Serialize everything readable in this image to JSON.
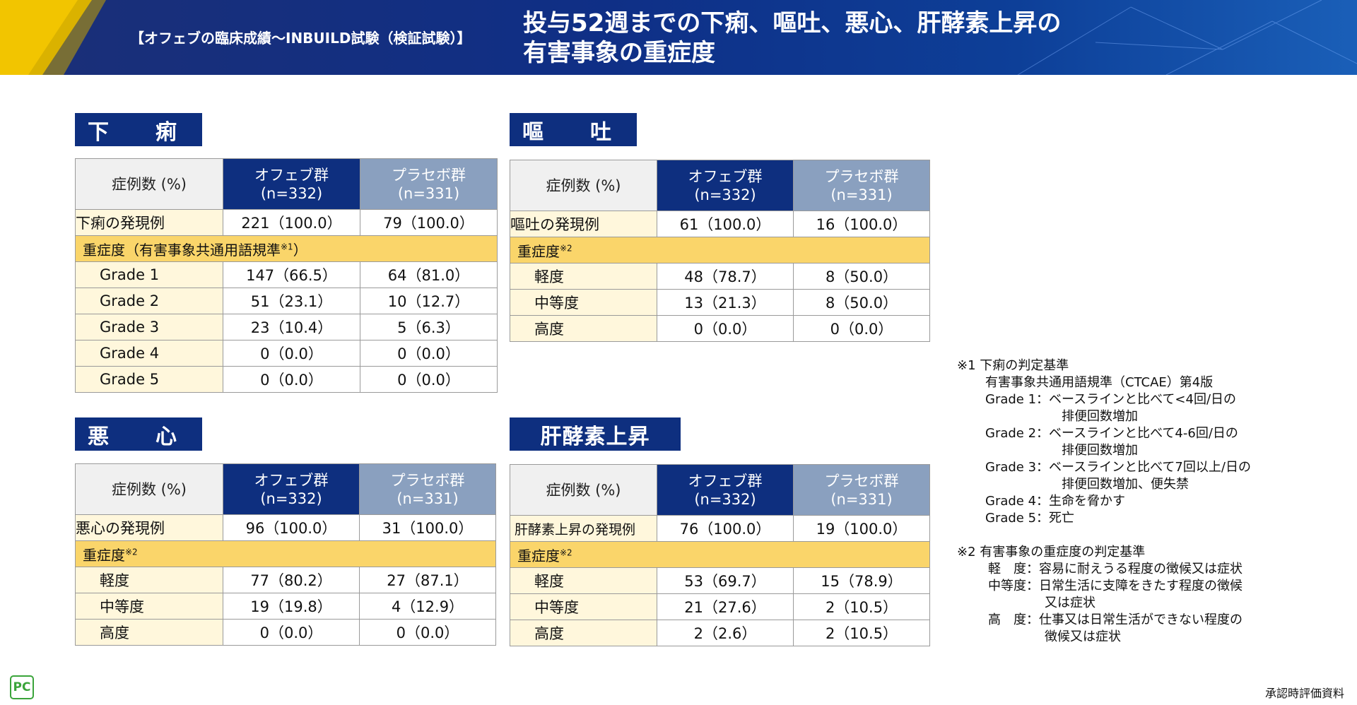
{
  "header": {
    "subtitle": "【オフェブの臨床成績〜INBUILD試験（検証試験）】",
    "title_line1": "投与52週までの下痢、嘔吐、悪心、肝酵素上昇の",
    "title_line2": "有害事象の重症度"
  },
  "col_headers": {
    "label": "症例数 (%)",
    "ofev_name": "オフェブ群",
    "ofev_n": "(n=332)",
    "placebo_name": "プラセボ群",
    "placebo_n": "(n=331)"
  },
  "tables": [
    {
      "section": "下　痢",
      "first_row": {
        "name": "下痢の発現例",
        "ofev": "221（100.0）",
        "placebo": "79（100.0）"
      },
      "severity_label": "重症度（有害事象共通用語規準",
      "severity_sup": "※1",
      "severity_close": "）",
      "rows": [
        {
          "name": "Grade 1",
          "ofev": "147（66.5）",
          "placebo": "64（81.0）"
        },
        {
          "name": "Grade 2",
          "ofev": "51（23.1）",
          "placebo": "10（12.7）"
        },
        {
          "name": "Grade 3",
          "ofev": "23（10.4）",
          "placebo": "5（6.3）"
        },
        {
          "name": "Grade 4",
          "ofev": "0（0.0）",
          "placebo": "0（0.0）"
        },
        {
          "name": "Grade 5",
          "ofev": "0（0.0）",
          "placebo": "0（0.0）"
        }
      ]
    },
    {
      "section": "嘔　吐",
      "first_row": {
        "name": "嘔吐の発現例",
        "ofev": "61（100.0）",
        "placebo": "16（100.0）"
      },
      "severity_label": "重症度",
      "severity_sup": "※2",
      "severity_close": "",
      "rows": [
        {
          "name": "軽度",
          "ofev": "48（78.7）",
          "placebo": "8（50.0）"
        },
        {
          "name": "中等度",
          "ofev": "13（21.3）",
          "placebo": "8（50.0）"
        },
        {
          "name": "高度",
          "ofev": "0（0.0）",
          "placebo": "0（0.0）"
        }
      ]
    },
    {
      "section": "悪　心",
      "first_row": {
        "name": "悪心の発現例",
        "ofev": "96（100.0）",
        "placebo": "31（100.0）"
      },
      "severity_label": "重症度",
      "severity_sup": "※2",
      "severity_close": "",
      "rows": [
        {
          "name": "軽度",
          "ofev": "77（80.2）",
          "placebo": "27（87.1）"
        },
        {
          "name": "中等度",
          "ofev": "19（19.8）",
          "placebo": "4（12.9）"
        },
        {
          "name": "高度",
          "ofev": "0（0.0）",
          "placebo": "0（0.0）"
        }
      ]
    },
    {
      "section": "肝酵素上昇",
      "first_row": {
        "name": "肝酵素上昇の発現例",
        "ofev": "76（100.0）",
        "placebo": "19（100.0）"
      },
      "severity_label": "重症度",
      "severity_sup": "※2",
      "severity_close": "",
      "rows": [
        {
          "name": "軽度",
          "ofev": "53（69.7）",
          "placebo": "15（78.9）"
        },
        {
          "name": "中等度",
          "ofev": "21（27.6）",
          "placebo": "2（10.5）"
        },
        {
          "name": "高度",
          "ofev": "2（2.6）",
          "placebo": "2（10.5）"
        }
      ]
    }
  ],
  "notes": {
    "n1_title": "※1 下痢の判定基準",
    "n1_sub": "有害事象共通用語規準（CTCAE）第4版",
    "n1_g1": "Grade 1：ベースラインと比べて<4回/日の",
    "n1_g1b": "排便回数増加",
    "n1_g2": "Grade 2：ベースラインと比べて4-6回/日の",
    "n1_g2b": "排便回数増加",
    "n1_g3": "Grade 3：ベースラインと比べて7回以上/日の",
    "n1_g3b": "排便回数増加、便失禁",
    "n1_g4": "Grade 4：生命を脅かす",
    "n1_g5": "Grade 5：死亡",
    "n2_title": "※2 有害事象の重症度の判定基準",
    "n2_mild": "軽　度：容易に耐えうる程度の徴候又は症状",
    "n2_mod": "中等度：日常生活に支障をきたす程度の徴候",
    "n2_modb": "又は症状",
    "n2_sev": "高　度：仕事又は日常生活ができない程度の",
    "n2_sevb": "徴候又は症状"
  },
  "footer": {
    "text": "承認時評価資料",
    "logo": "PC"
  },
  "colors": {
    "ofev": "#0e2f7f",
    "placebo": "#8aa0bf",
    "severity": "#fad56a",
    "label_bg": "#f0f0f0"
  }
}
